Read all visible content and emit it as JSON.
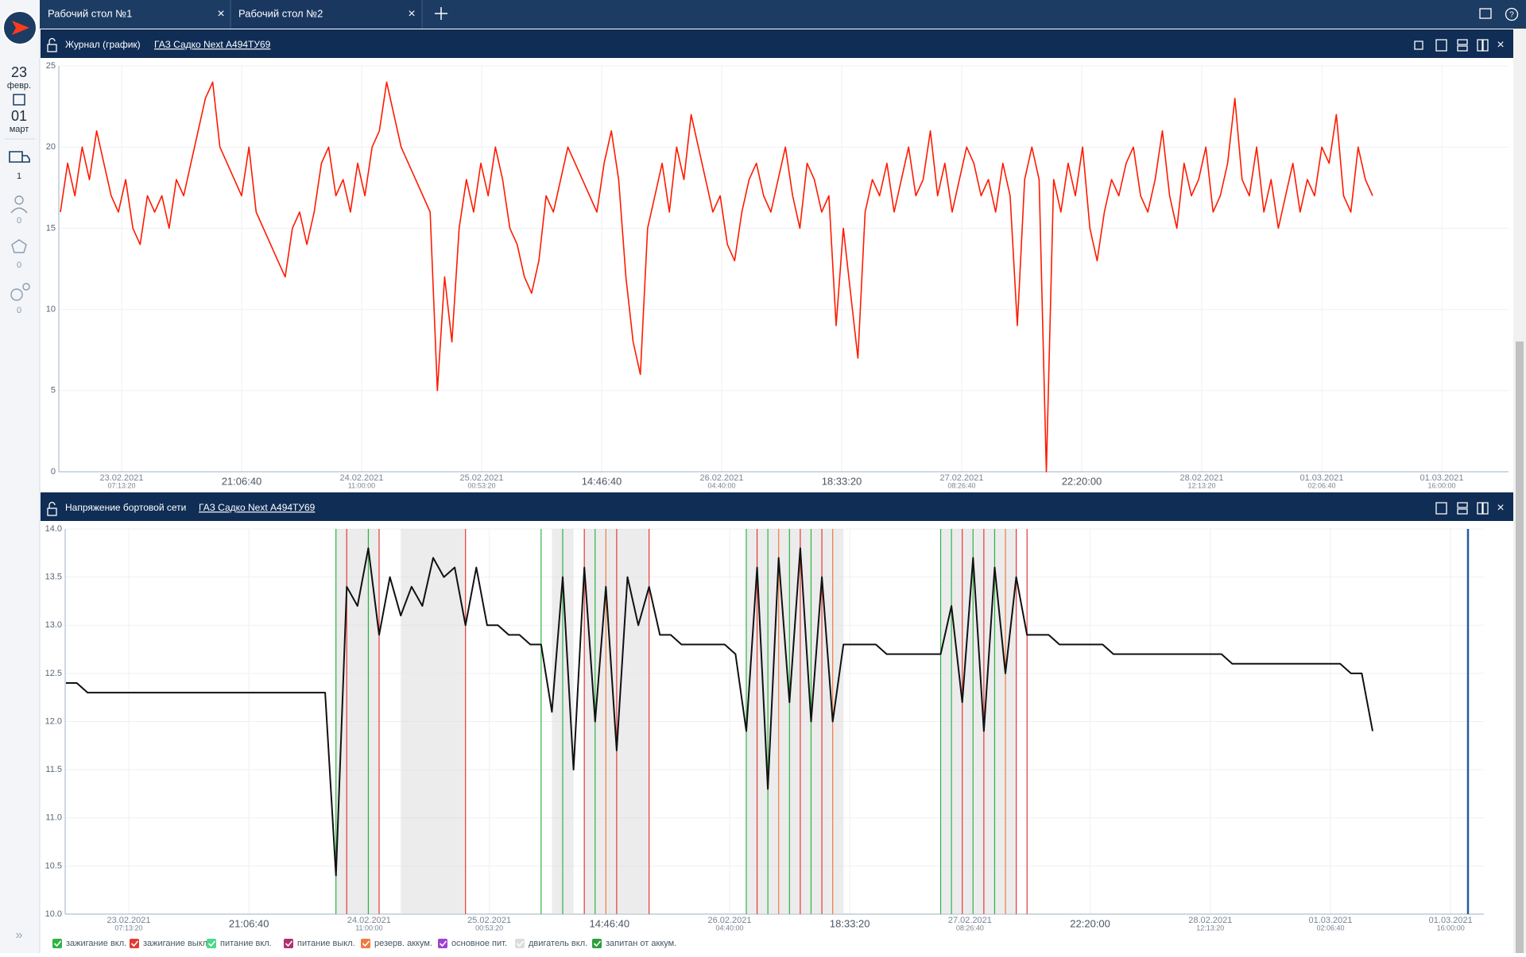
{
  "tabs": [
    "Рабочий стол №1",
    "Рабочий стол №2"
  ],
  "sidebar": {
    "day_from": "23",
    "month_from": "февр.",
    "day_to": "01",
    "month_to": "март",
    "vehicles": "1",
    "drivers": "0",
    "groups": "0",
    "geozones": "0"
  },
  "chart_data": [
    {
      "type": "line",
      "title": "Журнал (график)",
      "vehicle": "ГАЗ Садко Next А494ТУ69",
      "ylim": [
        0,
        25
      ],
      "yticks": [
        0,
        5,
        10,
        15,
        20,
        25
      ],
      "grid": true,
      "xticks": [
        {
          "label": "23.02.2021",
          "sublabel": "07:13:20"
        },
        {
          "label": "21:06:40"
        },
        {
          "label": "24.02.2021",
          "sublabel": "11:00:00"
        },
        {
          "label": "25.02.2021",
          "sublabel": "00:53:20"
        },
        {
          "label": "14:46:40"
        },
        {
          "label": "26.02.2021",
          "sublabel": "04:40:00"
        },
        {
          "label": "18:33:20"
        },
        {
          "label": "27.02.2021",
          "sublabel": "08:26:40"
        },
        {
          "label": "22:20:00"
        },
        {
          "label": "28.02.2021",
          "sublabel": "12:13:20"
        },
        {
          "label": "01.03.2021",
          "sublabel": "02:06:40"
        },
        {
          "label": "01.03.2021",
          "sublabel": "16:00:00"
        }
      ],
      "series": [
        {
          "color": "#ff1a00",
          "values": [
            16,
            19,
            17,
            20,
            18,
            21,
            19,
            17,
            16,
            18,
            15,
            14,
            17,
            16,
            17,
            15,
            18,
            17,
            19,
            21,
            23,
            24,
            20,
            19,
            18,
            17,
            20,
            16,
            15,
            14,
            13,
            12,
            15,
            16,
            14,
            16,
            19,
            20,
            17,
            18,
            16,
            19,
            17,
            20,
            21,
            24,
            22,
            20,
            19,
            18,
            17,
            16,
            5,
            12,
            8,
            15,
            18,
            16,
            19,
            17,
            20,
            18,
            15,
            14,
            12,
            11,
            13,
            17,
            16,
            18,
            20,
            19,
            18,
            17,
            16,
            19,
            21,
            18,
            12,
            8,
            6,
            15,
            17,
            19,
            16,
            20,
            18,
            22,
            20,
            18,
            16,
            17,
            14,
            13,
            16,
            18,
            19,
            17,
            16,
            18,
            20,
            17,
            15,
            19,
            18,
            16,
            17,
            9,
            15,
            11,
            7,
            16,
            18,
            17,
            19,
            16,
            18,
            20,
            17,
            18,
            21,
            17,
            19,
            16,
            18,
            20,
            19,
            17,
            18,
            16,
            19,
            17,
            9,
            18,
            20,
            18,
            0,
            18,
            16,
            19,
            17,
            20,
            15,
            13,
            16,
            18,
            17,
            19,
            20,
            17,
            16,
            18,
            21,
            17,
            15,
            19,
            17,
            18,
            20,
            16,
            17,
            19,
            23,
            18,
            17,
            20,
            16,
            18,
            15,
            17,
            19,
            16,
            18,
            17,
            20,
            19,
            22,
            17,
            16,
            20,
            18,
            17
          ]
        }
      ]
    },
    {
      "type": "line",
      "title": "Напряжение бортовой сети",
      "vehicle": "ГАЗ Садко Next А494ТУ69",
      "ylim": [
        10,
        14
      ],
      "grid": true,
      "yticks": [
        {
          "value": 10,
          "label": "10.0"
        },
        {
          "value": 10.5,
          "label": "10.5"
        },
        {
          "value": 11,
          "label": "11.0"
        },
        {
          "value": 11.5,
          "label": "11.5"
        },
        {
          "value": 12,
          "label": "12.0"
        },
        {
          "value": 12.5,
          "label": "12.5"
        },
        {
          "value": 13,
          "label": "13.0"
        },
        {
          "value": 13.5,
          "label": "13.5"
        },
        {
          "value": 14,
          "label": "14.0"
        }
      ],
      "xticks": [
        {
          "label": "23.02.2021",
          "sublabel": "07:13:20"
        },
        {
          "label": "21:06:40"
        },
        {
          "label": "24.02.2021",
          "sublabel": "11:00:00"
        },
        {
          "label": "25.02.2021",
          "sublabel": "00:53:20"
        },
        {
          "label": "14:46:40"
        },
        {
          "label": "26.02.2021",
          "sublabel": "04:40:00"
        },
        {
          "label": "18:33:20"
        },
        {
          "label": "27.02.2021",
          "sublabel": "08:26:40"
        },
        {
          "label": "22:20:00"
        },
        {
          "label": "28.02.2021",
          "sublabel": "12:13:20"
        },
        {
          "label": "01.03.2021",
          "sublabel": "02:06:40"
        },
        {
          "label": "01.03.2021",
          "sublabel": "16:00:00"
        }
      ],
      "series": [
        {
          "color": "#111111",
          "values": [
            12.4,
            12.4,
            12.3,
            12.3,
            12.3,
            12.3,
            12.3,
            12.3,
            12.3,
            12.3,
            12.3,
            12.3,
            12.3,
            12.3,
            12.3,
            12.3,
            12.3,
            12.3,
            12.3,
            12.3,
            12.3,
            12.3,
            12.3,
            12.3,
            12.3,
            10.4,
            13.4,
            13.2,
            13.8,
            12.9,
            13.5,
            13.1,
            13.4,
            13.2,
            13.7,
            13.5,
            13.6,
            13.0,
            13.6,
            13.0,
            13.0,
            12.9,
            12.9,
            12.8,
            12.8,
            12.1,
            13.5,
            11.5,
            13.6,
            12.0,
            13.4,
            11.7,
            13.5,
            13.0,
            13.4,
            12.9,
            12.9,
            12.8,
            12.8,
            12.8,
            12.8,
            12.8,
            12.7,
            11.9,
            13.6,
            11.3,
            13.7,
            12.2,
            13.8,
            12.0,
            13.5,
            12.0,
            12.8,
            12.8,
            12.8,
            12.8,
            12.7,
            12.7,
            12.7,
            12.7,
            12.7,
            12.7,
            13.2,
            12.2,
            13.7,
            11.9,
            13.6,
            12.5,
            13.5,
            12.9,
            12.9,
            12.9,
            12.8,
            12.8,
            12.8,
            12.8,
            12.8,
            12.7,
            12.7,
            12.7,
            12.7,
            12.7,
            12.7,
            12.7,
            12.7,
            12.7,
            12.7,
            12.7,
            12.6,
            12.6,
            12.6,
            12.6,
            12.6,
            12.6,
            12.6,
            12.6,
            12.6,
            12.6,
            12.6,
            12.5,
            12.5,
            11.9
          ]
        }
      ],
      "event_kinds": [
        {
          "name": "зажигание вкл.",
          "color": "#2fb344"
        },
        {
          "name": "зажигание выкл.",
          "color": "#e53935"
        },
        {
          "name": "питание вкл.",
          "color": "#4cd98a"
        },
        {
          "name": "питание выкл.",
          "color": "#b0306e"
        },
        {
          "name": "резерв. аккум.",
          "color": "#f07b3f"
        },
        {
          "name": "основное пит.",
          "color": "#a040d0"
        },
        {
          "name": "двигатель вкл.",
          "color": "#dddddd"
        },
        {
          "name": "запитан от аккум.",
          "color": "#2e9e3e"
        }
      ],
      "engine_on": [
        [
          25,
          29
        ],
        [
          31,
          37
        ],
        [
          45,
          47
        ],
        [
          48,
          54
        ],
        [
          63,
          72
        ],
        [
          81,
          88
        ]
      ],
      "events": [
        {
          "kind": 0,
          "at": 25
        },
        {
          "kind": 1,
          "at": 26
        },
        {
          "kind": 0,
          "at": 28
        },
        {
          "kind": 1,
          "at": 29
        },
        {
          "kind": 1,
          "at": 37
        },
        {
          "kind": 0,
          "at": 44
        },
        {
          "kind": 0,
          "at": 46
        },
        {
          "kind": 1,
          "at": 48
        },
        {
          "kind": 0,
          "at": 49
        },
        {
          "kind": 4,
          "at": 50
        },
        {
          "kind": 1,
          "at": 51
        },
        {
          "kind": 1,
          "at": 54
        },
        {
          "kind": 0,
          "at": 63
        },
        {
          "kind": 1,
          "at": 64
        },
        {
          "kind": 0,
          "at": 65
        },
        {
          "kind": 4,
          "at": 66
        },
        {
          "kind": 0,
          "at": 67
        },
        {
          "kind": 1,
          "at": 68
        },
        {
          "kind": 0,
          "at": 69
        },
        {
          "kind": 1,
          "at": 70
        },
        {
          "kind": 4,
          "at": 71
        },
        {
          "kind": 0,
          "at": 81
        },
        {
          "kind": 0,
          "at": 82
        },
        {
          "kind": 1,
          "at": 83
        },
        {
          "kind": 0,
          "at": 84
        },
        {
          "kind": 1,
          "at": 85
        },
        {
          "kind": 0,
          "at": 86
        },
        {
          "kind": 4,
          "at": 87
        },
        {
          "kind": 1,
          "at": 88
        },
        {
          "kind": 1,
          "at": 89
        }
      ]
    }
  ]
}
